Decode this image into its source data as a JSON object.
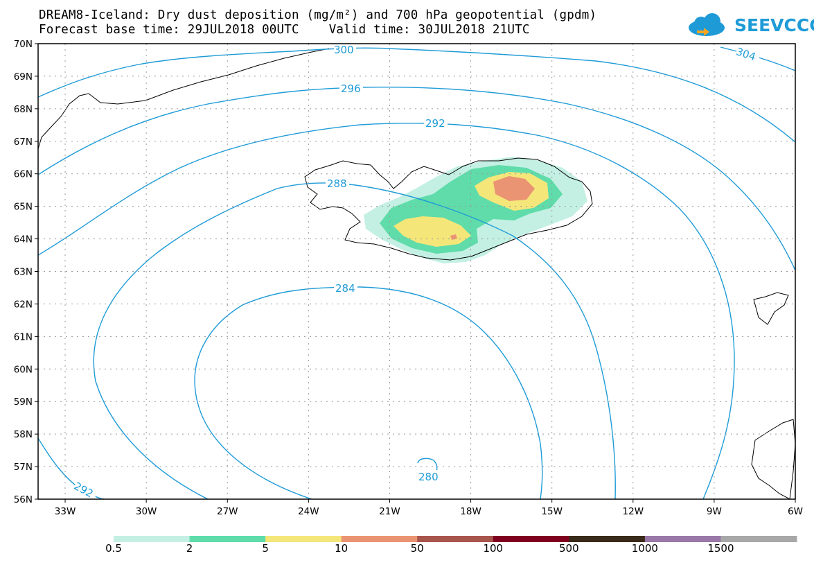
{
  "header": {
    "title_line1": "DREAM8-Iceland: Dry dust deposition (mg/m²) and 700 hPa geopotential (gpdm)",
    "title_line2": "Forecast base time: 29JUL2018 00UTC    Valid time: 30JUL2018 21UTC",
    "logo_text": "SEEVCCC"
  },
  "map": {
    "lat_labels": [
      "70N",
      "69N",
      "68N",
      "67N",
      "66N",
      "65N",
      "64N",
      "63N",
      "62N",
      "61N",
      "60N",
      "59N",
      "58N",
      "57N",
      "56N"
    ],
    "lon_labels": [
      "33W",
      "30W",
      "27W",
      "24W",
      "21W",
      "18W",
      "15W",
      "12W",
      "9W",
      "6W"
    ],
    "contour_labels": [
      "300",
      "304",
      "296",
      "292",
      "288",
      "284",
      "280",
      "292"
    ],
    "line_color": "#1e9bd7"
  },
  "legend": {
    "labels": [
      "0.5",
      "2",
      "5",
      "10",
      "50",
      "100",
      "500",
      "1000",
      "1500"
    ],
    "colors": [
      "#c4f0e4",
      "#5fdcaa",
      "#f5e67a",
      "#ea9474",
      "#a8564c",
      "#800020",
      "#3a2a1a",
      "#9a78a8",
      "#a8a8a8"
    ]
  }
}
